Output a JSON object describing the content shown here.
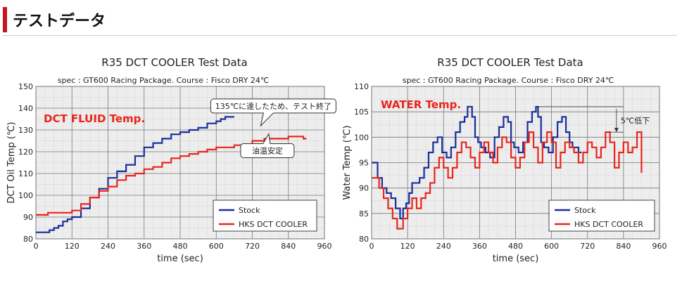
{
  "section_title": "テストデータ",
  "colors": {
    "stock": "#1a2e9a",
    "hks": "#e8251c",
    "title_red": "#e8251c",
    "accent": "#c8161d"
  },
  "chart_data": [
    {
      "type": "line",
      "title": "R35 DCT COOLER Test Data",
      "subtitle": "spec : GT600 Racing Package.    Course : Fisco  DRY  24℃",
      "inner_title": "DCT FLUID Temp.",
      "xlabel": "time (sec)",
      "ylabel": "DCT Oil Temp (℃)",
      "xlim": [
        0,
        960
      ],
      "ylim": [
        80,
        150
      ],
      "xticks": [
        0,
        120,
        240,
        360,
        480,
        600,
        720,
        840,
        960
      ],
      "yticks": [
        80,
        90,
        100,
        110,
        120,
        130,
        140,
        150
      ],
      "grid": true,
      "legend": "bottom-right",
      "annotations": [
        {
          "text": "135℃に達したため、テスト終了",
          "x": 790,
          "y": 141
        },
        {
          "text": "油温安定",
          "x": 770,
          "y": 120.5
        }
      ],
      "series": [
        {
          "name": "Stock",
          "color": "#1a2e9a",
          "x": [
            0,
            30,
            45,
            60,
            75,
            90,
            105,
            120,
            150,
            180,
            210,
            240,
            270,
            300,
            330,
            360,
            390,
            420,
            450,
            480,
            510,
            540,
            570,
            600,
            615,
            630,
            660
          ],
          "y": [
            83,
            83,
            84,
            85,
            86,
            88,
            89,
            90,
            94,
            99,
            103,
            108,
            111,
            114,
            118,
            122,
            124,
            126,
            128,
            129,
            130,
            131,
            133,
            134,
            135,
            136,
            136
          ]
        },
        {
          "name": "HKS DCT COOLER",
          "color": "#e8251c",
          "x": [
            0,
            20,
            40,
            60,
            90,
            120,
            150,
            180,
            210,
            240,
            270,
            300,
            330,
            360,
            390,
            420,
            450,
            480,
            510,
            540,
            570,
            600,
            660,
            720,
            760,
            800,
            840,
            870,
            890,
            900
          ],
          "y": [
            91,
            91,
            92,
            92,
            92,
            93,
            96,
            99,
            102,
            104,
            107,
            109,
            110,
            112,
            113,
            115,
            117,
            118,
            119,
            120,
            121,
            122,
            123,
            125,
            126,
            126,
            127,
            127,
            126,
            126
          ]
        }
      ]
    },
    {
      "type": "line",
      "title": "R35 DCT COOLER Test Data",
      "subtitle": "spec : GT600 Racing Package.    Course : Fisco   DRY  24℃",
      "inner_title": "WATER Temp.",
      "xlabel": "time (sec)",
      "ylabel": "Water Temp (℃)",
      "xlim": [
        0,
        960
      ],
      "ylim": [
        80,
        110
      ],
      "xticks": [
        0,
        120,
        240,
        360,
        480,
        600,
        720,
        840,
        960
      ],
      "yticks": [
        80,
        85,
        90,
        95,
        100,
        105,
        110
      ],
      "grid": true,
      "legend": "bottom-right",
      "annotations": [
        {
          "text": "5℃低下",
          "x": 850,
          "y": 103
        }
      ],
      "series": [
        {
          "name": "Stock",
          "color": "#1a2e9a",
          "x": [
            0,
            10,
            20,
            35,
            50,
            65,
            80,
            95,
            105,
            115,
            125,
            135,
            145,
            160,
            175,
            190,
            205,
            220,
            235,
            250,
            265,
            280,
            295,
            310,
            320,
            335,
            345,
            355,
            365,
            380,
            395,
            410,
            425,
            440,
            455,
            465,
            475,
            490,
            505,
            520,
            535,
            548,
            555,
            565,
            575,
            590,
            605,
            620,
            635,
            648,
            660,
            670,
            680,
            690,
            700
          ],
          "y": [
            95,
            95,
            92,
            90,
            89,
            88,
            86,
            84,
            86,
            87,
            89,
            91,
            91,
            92,
            94,
            97,
            99,
            100,
            97,
            96,
            98,
            101,
            103,
            104,
            106,
            104,
            100,
            99,
            98,
            97,
            96,
            100,
            102,
            104,
            103,
            99,
            98,
            97,
            99,
            103,
            105,
            106,
            104,
            99,
            98,
            97,
            100,
            103,
            104,
            101,
            99,
            98,
            98,
            97,
            97
          ]
        },
        {
          "name": "HKS DCT COOLER",
          "color": "#e8251c",
          "x": [
            0,
            15,
            25,
            40,
            55,
            70,
            85,
            95,
            105,
            120,
            135,
            150,
            165,
            180,
            195,
            210,
            225,
            240,
            255,
            270,
            285,
            300,
            315,
            330,
            345,
            360,
            375,
            390,
            405,
            420,
            435,
            450,
            465,
            480,
            495,
            510,
            525,
            540,
            555,
            570,
            585,
            600,
            615,
            630,
            645,
            660,
            675,
            690,
            705,
            720,
            735,
            750,
            765,
            780,
            795,
            810,
            825,
            840,
            855,
            870,
            885,
            900
          ],
          "y": [
            92,
            92,
            90,
            88,
            86,
            84,
            82,
            82,
            84,
            86,
            88,
            86,
            88,
            89,
            91,
            94,
            96,
            94,
            92,
            94,
            97,
            99,
            98,
            96,
            94,
            97,
            99,
            97,
            95,
            98,
            100,
            99,
            96,
            94,
            96,
            99,
            101,
            98,
            95,
            99,
            101,
            99,
            94,
            97,
            99,
            98,
            97,
            95,
            97,
            99,
            98,
            96,
            98,
            101,
            99,
            94,
            97,
            99,
            97,
            98,
            101,
            93
          ]
        }
      ]
    }
  ]
}
